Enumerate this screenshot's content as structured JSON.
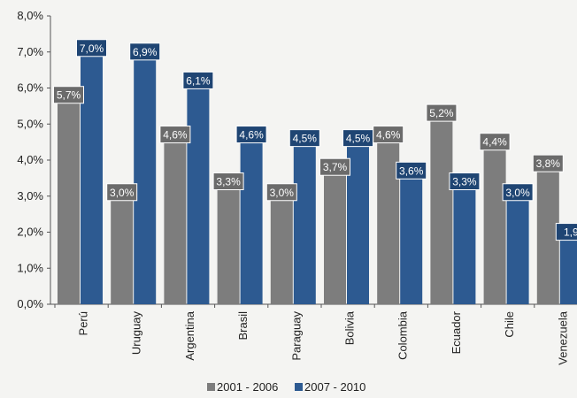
{
  "chart_data": {
    "type": "bar",
    "categories": [
      "Perú",
      "Uruguay",
      "Argentina",
      "Brasil",
      "Paraguay",
      "Bolivia",
      "Colombia",
      "Ecuador",
      "Chile",
      "Venezuela"
    ],
    "series": [
      {
        "name": "2001 - 2006",
        "color": "#7d7d7d",
        "label_color": "#6b6b6b",
        "values": [
          5.7,
          3.0,
          4.6,
          3.3,
          3.0,
          3.7,
          4.6,
          5.2,
          4.4,
          3.8
        ],
        "labels": [
          "5,7%",
          "3,0%",
          "4,6%",
          "3,3%",
          "3,0%",
          "3,7%",
          "4,6%",
          "5,2%",
          "4,4%",
          "3,8%"
        ]
      },
      {
        "name": "2007 - 2010",
        "color": "#2d5a91",
        "label_color": "#1f4573",
        "values": [
          7.0,
          6.9,
          6.1,
          4.6,
          4.5,
          4.5,
          3.6,
          3.3,
          3.0,
          1.9
        ],
        "labels": [
          "7,0%",
          "6,9%",
          "6,1%",
          "4,6%",
          "4,5%",
          "4,5%",
          "3,6%",
          "3,3%",
          "3,0%",
          "1,9"
        ]
      }
    ],
    "y_ticks": [
      "0,0%",
      "1,0%",
      "2,0%",
      "3,0%",
      "4,0%",
      "5,0%",
      "6,0%",
      "7,0%",
      "8,0%"
    ],
    "ylim": [
      0,
      8
    ],
    "grid": false,
    "legend_position": "bottom-center"
  }
}
